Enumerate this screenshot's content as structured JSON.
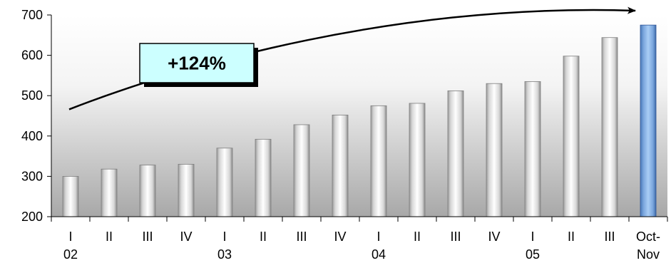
{
  "chart_data": {
    "type": "bar",
    "categories": [
      "I",
      "II",
      "III",
      "IV",
      "I",
      "II",
      "III",
      "IV",
      "I",
      "II",
      "III",
      "IV",
      "I",
      "II",
      "III",
      "Oct-Nov"
    ],
    "year_groups": [
      {
        "label": "02",
        "start": 0,
        "end": 3
      },
      {
        "label": "03",
        "start": 4,
        "end": 7
      },
      {
        "label": "04",
        "start": 8,
        "end": 11
      },
      {
        "label": "05",
        "start": 12,
        "end": 15
      }
    ],
    "values": [
      300,
      318,
      328,
      330,
      370,
      392,
      428,
      452,
      475,
      481,
      512,
      530,
      535,
      598,
      644,
      675
    ],
    "highlight_index": 15,
    "ylim": [
      200,
      700
    ],
    "yticks": [
      200,
      300,
      400,
      500,
      600,
      700
    ],
    "title": "",
    "xlabel": "",
    "ylabel": "",
    "grid": false,
    "annotation": {
      "text": "+124%",
      "from_index": 0,
      "to_index": 15
    },
    "colors": {
      "bar": "#d9d9d9",
      "highlight_bar": "#8db4e2",
      "callout_fill": "#ccffff",
      "background_top": "#ffffff",
      "background_bottom": "#a6a6a6"
    }
  }
}
